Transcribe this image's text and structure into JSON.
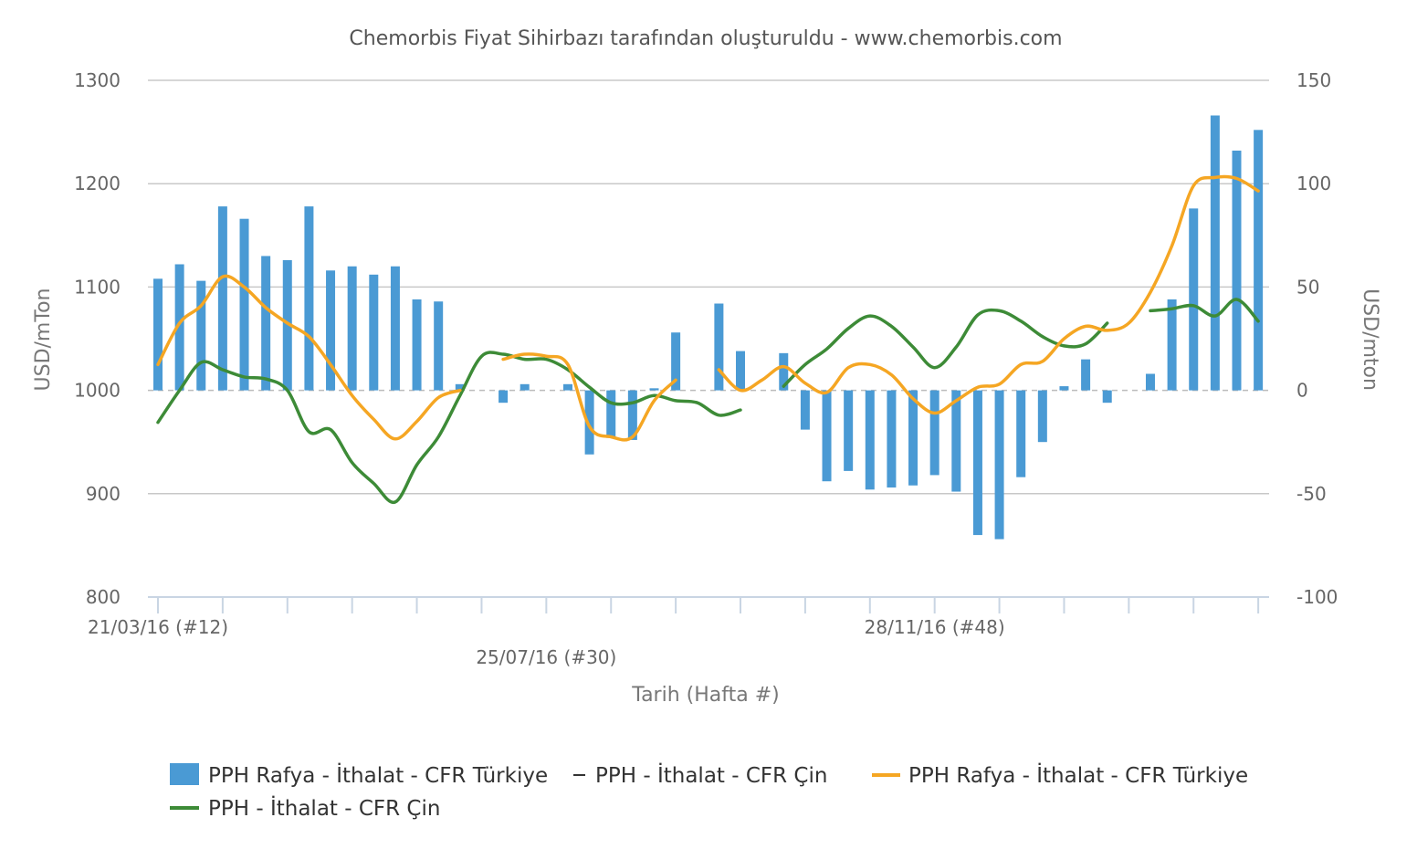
{
  "chart_data": {
    "type": "bar+line",
    "title": "Chemorbis Fiyat Sihirbazı tarafından oluşturuldu - www.chemorbis.com",
    "xlabel": "Tarih (Hafta #)",
    "ylabel_left": "USD/mTon",
    "ylabel_right": "USD/mton",
    "ylim_left": [
      800,
      1300
    ],
    "ylim_right": [
      -100,
      150
    ],
    "yticks_left": [
      "1300",
      "1200",
      "1100",
      "1000",
      "900",
      "800"
    ],
    "yticks_right": [
      "150",
      "100",
      "50",
      "0",
      "-50",
      "-100"
    ],
    "x_tick_labels": [
      {
        "label": "21/03/16 (#12)",
        "week": 12
      },
      {
        "label": "25/07/16 (#30)",
        "week": 30
      },
      {
        "label": "28/11/16 (#48)",
        "week": 48
      }
    ],
    "week_range": [
      12,
      64
    ],
    "grid": true,
    "legend_position": "bottom",
    "series": [
      {
        "name": "PPH Rafya - İthalat - CFR Türkiye",
        "kind": "bar",
        "axis": "right",
        "color": "#4a9ad4",
        "points": [
          [
            12,
            54
          ],
          [
            13,
            61
          ],
          [
            14,
            53
          ],
          [
            15,
            89
          ],
          [
            16,
            83
          ],
          [
            17,
            65
          ],
          [
            18,
            63
          ],
          [
            19,
            89
          ],
          [
            20,
            58
          ],
          [
            21,
            60
          ],
          [
            22,
            56
          ],
          [
            23,
            60
          ],
          [
            24,
            44
          ],
          [
            25,
            43
          ],
          [
            26,
            3
          ],
          [
            28,
            -6
          ],
          [
            29,
            3
          ],
          [
            31,
            3
          ],
          [
            32,
            -31
          ],
          [
            33,
            -23
          ],
          [
            34,
            -24
          ],
          [
            35,
            1
          ],
          [
            36,
            28
          ],
          [
            38,
            42
          ],
          [
            39,
            19
          ],
          [
            41,
            18
          ],
          [
            42,
            -19
          ],
          [
            43,
            -44
          ],
          [
            44,
            -39
          ],
          [
            45,
            -48
          ],
          [
            46,
            -47
          ],
          [
            47,
            -46
          ],
          [
            48,
            -41
          ],
          [
            49,
            -49
          ],
          [
            50,
            -70
          ],
          [
            51,
            -72
          ],
          [
            52,
            -42
          ],
          [
            53,
            -25
          ],
          [
            54,
            2
          ],
          [
            55,
            15
          ],
          [
            56,
            -6
          ],
          [
            58,
            8
          ],
          [
            59,
            44
          ],
          [
            60,
            88
          ],
          [
            61,
            133
          ],
          [
            62,
            116
          ],
          [
            63,
            126
          ]
        ]
      },
      {
        "name": "PPH - İthalat - CFR Çin",
        "kind": "line",
        "axis": "left",
        "color": "#3d8b37",
        "legend_marker": "dash",
        "segments": [
          [
            [
              12,
              969
            ],
            [
              13,
              1000
            ],
            [
              14,
              1027
            ],
            [
              15,
              1020
            ],
            [
              16,
              1013
            ],
            [
              17,
              1011
            ],
            [
              18,
              1000
            ],
            [
              19,
              960
            ],
            [
              20,
              962
            ],
            [
              21,
              930
            ],
            [
              22,
              910
            ],
            [
              23,
              892
            ],
            [
              24,
              928
            ],
            [
              25,
              955
            ],
            [
              26,
              995
            ],
            [
              27,
              1033
            ],
            [
              28,
              1035
            ],
            [
              29,
              1030
            ],
            [
              30,
              1030
            ],
            [
              31,
              1020
            ],
            [
              32,
              1003
            ],
            [
              33,
              988
            ],
            [
              34,
              988
            ],
            [
              35,
              995
            ],
            [
              36,
              990
            ],
            [
              37,
              988
            ],
            [
              38,
              976
            ],
            [
              39,
              981
            ]
          ],
          [
            [
              41,
              1004
            ],
            [
              42,
              1025
            ],
            [
              43,
              1040
            ],
            [
              44,
              1060
            ],
            [
              45,
              1072
            ],
            [
              46,
              1062
            ],
            [
              47,
              1042
            ],
            [
              48,
              1022
            ],
            [
              49,
              1042
            ],
            [
              50,
              1073
            ],
            [
              51,
              1077
            ],
            [
              52,
              1067
            ],
            [
              53,
              1052
            ],
            [
              54,
              1043
            ],
            [
              55,
              1045
            ],
            [
              56,
              1065
            ]
          ],
          [
            [
              58,
              1077
            ],
            [
              59,
              1079
            ],
            [
              60,
              1082
            ],
            [
              61,
              1072
            ],
            [
              62,
              1088
            ],
            [
              63,
              1067
            ]
          ]
        ]
      },
      {
        "name": "PPH Rafya - İthalat - CFR Türkiye",
        "kind": "line",
        "axis": "left",
        "color": "#f5a623",
        "legend_marker": "line",
        "segments": [
          [
            [
              12,
              1025
            ],
            [
              13,
              1065
            ],
            [
              14,
              1082
            ],
            [
              15,
              1110
            ],
            [
              16,
              1100
            ],
            [
              17,
              1080
            ],
            [
              18,
              1065
            ],
            [
              19,
              1052
            ],
            [
              20,
              1025
            ],
            [
              21,
              995
            ],
            [
              22,
              972
            ],
            [
              23,
              953
            ],
            [
              24,
              970
            ],
            [
              25,
              993
            ],
            [
              26,
              1000
            ]
          ],
          [
            [
              28,
              1030
            ],
            [
              29,
              1035
            ],
            [
              30,
              1033
            ],
            [
              31,
              1025
            ],
            [
              32,
              965
            ],
            [
              33,
              955
            ],
            [
              34,
              955
            ],
            [
              35,
              990
            ],
            [
              36,
              1010
            ]
          ],
          [
            [
              38,
              1020
            ],
            [
              39,
              1000
            ],
            [
              40,
              1010
            ],
            [
              41,
              1023
            ],
            [
              42,
              1007
            ],
            [
              43,
              998
            ],
            [
              44,
              1022
            ],
            [
              45,
              1025
            ],
            [
              46,
              1015
            ],
            [
              47,
              992
            ],
            [
              48,
              978
            ],
            [
              49,
              990
            ],
            [
              50,
              1003
            ],
            [
              51,
              1006
            ],
            [
              52,
              1025
            ],
            [
              53,
              1028
            ],
            [
              54,
              1050
            ],
            [
              55,
              1062
            ],
            [
              56,
              1058
            ],
            [
              57,
              1065
            ],
            [
              58,
              1095
            ],
            [
              59,
              1140
            ],
            [
              60,
              1198
            ],
            [
              61,
              1206
            ],
            [
              62,
              1205
            ],
            [
              63,
              1193
            ]
          ]
        ]
      }
    ]
  }
}
